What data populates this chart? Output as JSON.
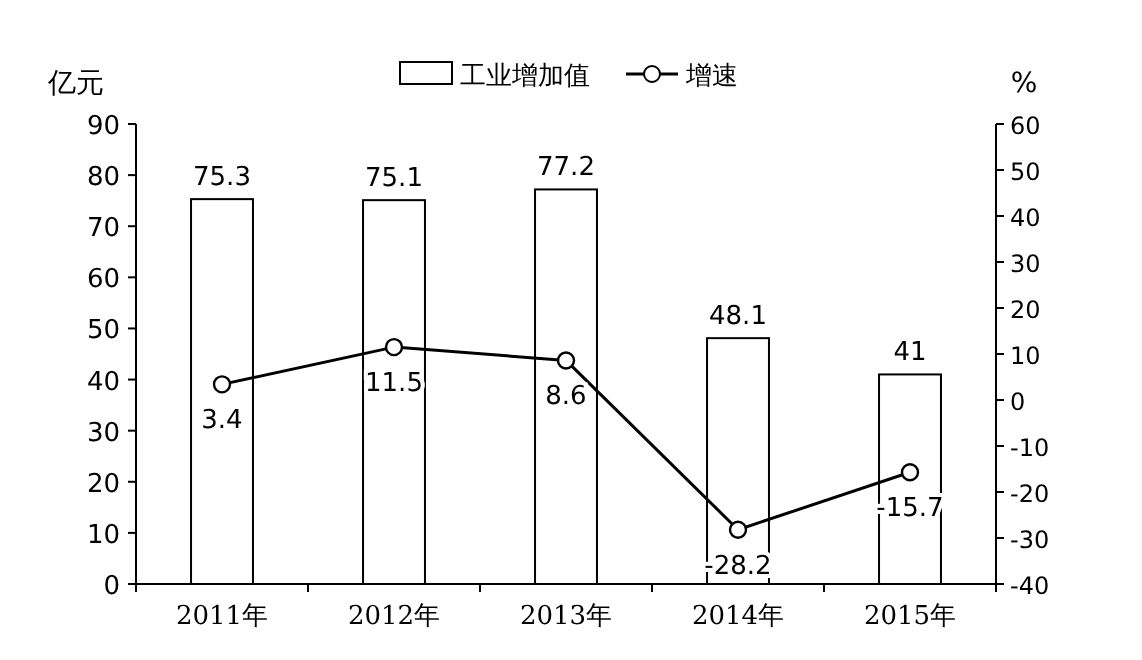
{
  "chart_data": {
    "type": "bar",
    "categories": [
      "2011年",
      "2012年",
      "2013年",
      "2014年",
      "2015年"
    ],
    "ylabel": "亿元",
    "y2label": "%",
    "ylim": [
      0,
      90
    ],
    "yticks": [
      0,
      10,
      20,
      30,
      40,
      50,
      60,
      70,
      80,
      90
    ],
    "y2lim": [
      -40,
      60
    ],
    "y2ticks": [
      -40,
      -30,
      -20,
      -10,
      0,
      10,
      20,
      30,
      40,
      50,
      60
    ],
    "series": [
      {
        "name": "工业增加值",
        "color": "#ffffff",
        "values": [
          75.3,
          75.1,
          77.2,
          48.1,
          41
        ]
      },
      {
        "name": "增速",
        "type": "line",
        "axis": "y2",
        "color": "#000000",
        "marker": "circle",
        "values": [
          3.4,
          11.5,
          8.6,
          -28.2,
          -15.7
        ]
      }
    ],
    "data_labels": true,
    "legend": "top",
    "grid": false
  }
}
